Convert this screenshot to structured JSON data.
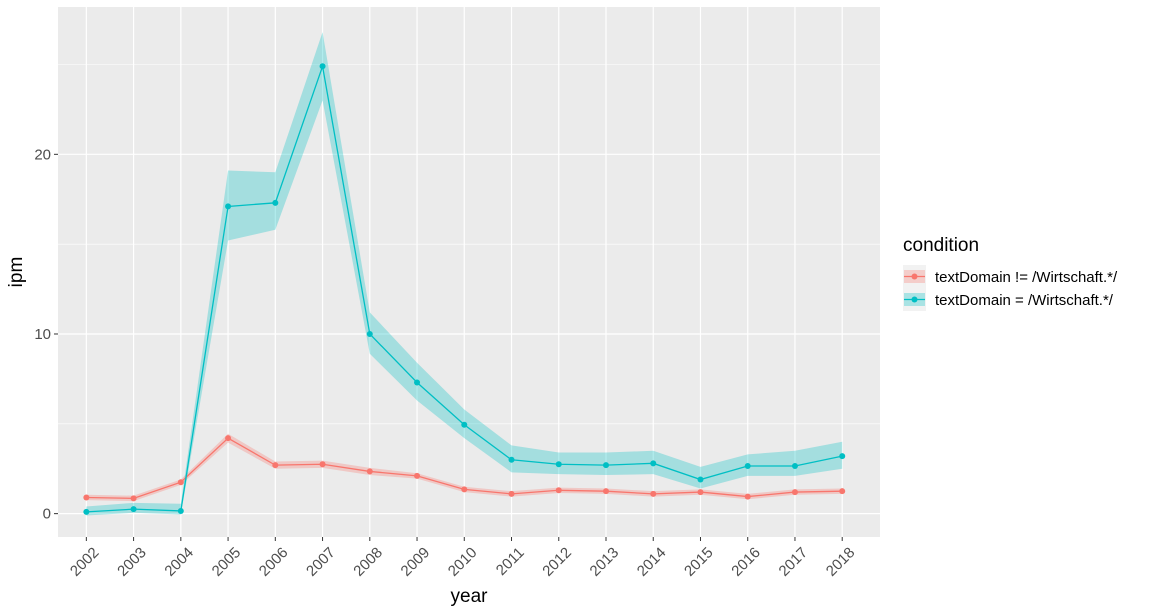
{
  "chart_data": {
    "type": "line",
    "title": "",
    "xlabel": "year",
    "ylabel": "ipm",
    "x": [
      2002,
      2003,
      2004,
      2005,
      2006,
      2007,
      2008,
      2009,
      2010,
      2011,
      2012,
      2013,
      2014,
      2015,
      2016,
      2017,
      2018
    ],
    "x_tick_labels": [
      "2002",
      "2003",
      "2004",
      "2005",
      "2006",
      "2007",
      "2008",
      "2009",
      "2010",
      "2011",
      "2012",
      "2013",
      "2014",
      "2015",
      "2016",
      "2017",
      "2018"
    ],
    "y_ticks": [
      0,
      10,
      20
    ],
    "y_tick_labels": [
      "0",
      "10",
      "20"
    ],
    "ylim": [
      -1.3,
      28.2
    ],
    "xlim": [
      2001.4,
      2018.8
    ],
    "grid": true,
    "legend_position": "right",
    "legend_title": "condition",
    "series": [
      {
        "name": "textDomain != /Wirtschaft.*/",
        "color": "#F8766D",
        "band_color": "#F8766D",
        "values": [
          0.9,
          0.85,
          1.75,
          4.2,
          2.7,
          2.75,
          2.35,
          2.1,
          1.35,
          1.1,
          1.3,
          1.25,
          1.1,
          1.2,
          0.95,
          1.2,
          1.25
        ],
        "lower": [
          0.75,
          0.7,
          1.6,
          3.95,
          2.5,
          2.55,
          2.15,
          1.95,
          1.2,
          0.95,
          1.15,
          1.1,
          0.95,
          1.05,
          0.8,
          1.05,
          1.1
        ],
        "upper": [
          1.05,
          1.0,
          1.9,
          4.45,
          2.9,
          2.95,
          2.55,
          2.25,
          1.5,
          1.25,
          1.45,
          1.4,
          1.25,
          1.35,
          1.1,
          1.35,
          1.4
        ]
      },
      {
        "name": "textDomain = /Wirtschaft.*/",
        "color": "#00BFC4",
        "band_color": "#00BFC4",
        "values": [
          0.1,
          0.25,
          0.15,
          17.1,
          17.3,
          24.9,
          10.0,
          7.3,
          4.95,
          3.0,
          2.75,
          2.7,
          2.8,
          1.9,
          2.65,
          2.65,
          3.2
        ],
        "lower": [
          -0.1,
          0.05,
          -0.05,
          15.2,
          15.8,
          23.0,
          8.9,
          6.3,
          4.2,
          2.3,
          2.2,
          2.15,
          2.2,
          1.4,
          2.1,
          2.1,
          2.5
        ],
        "upper": [
          0.4,
          0.6,
          0.55,
          19.1,
          19.0,
          26.8,
          11.2,
          8.4,
          5.8,
          3.8,
          3.4,
          3.4,
          3.5,
          2.6,
          3.3,
          3.5,
          4.0
        ]
      }
    ]
  }
}
